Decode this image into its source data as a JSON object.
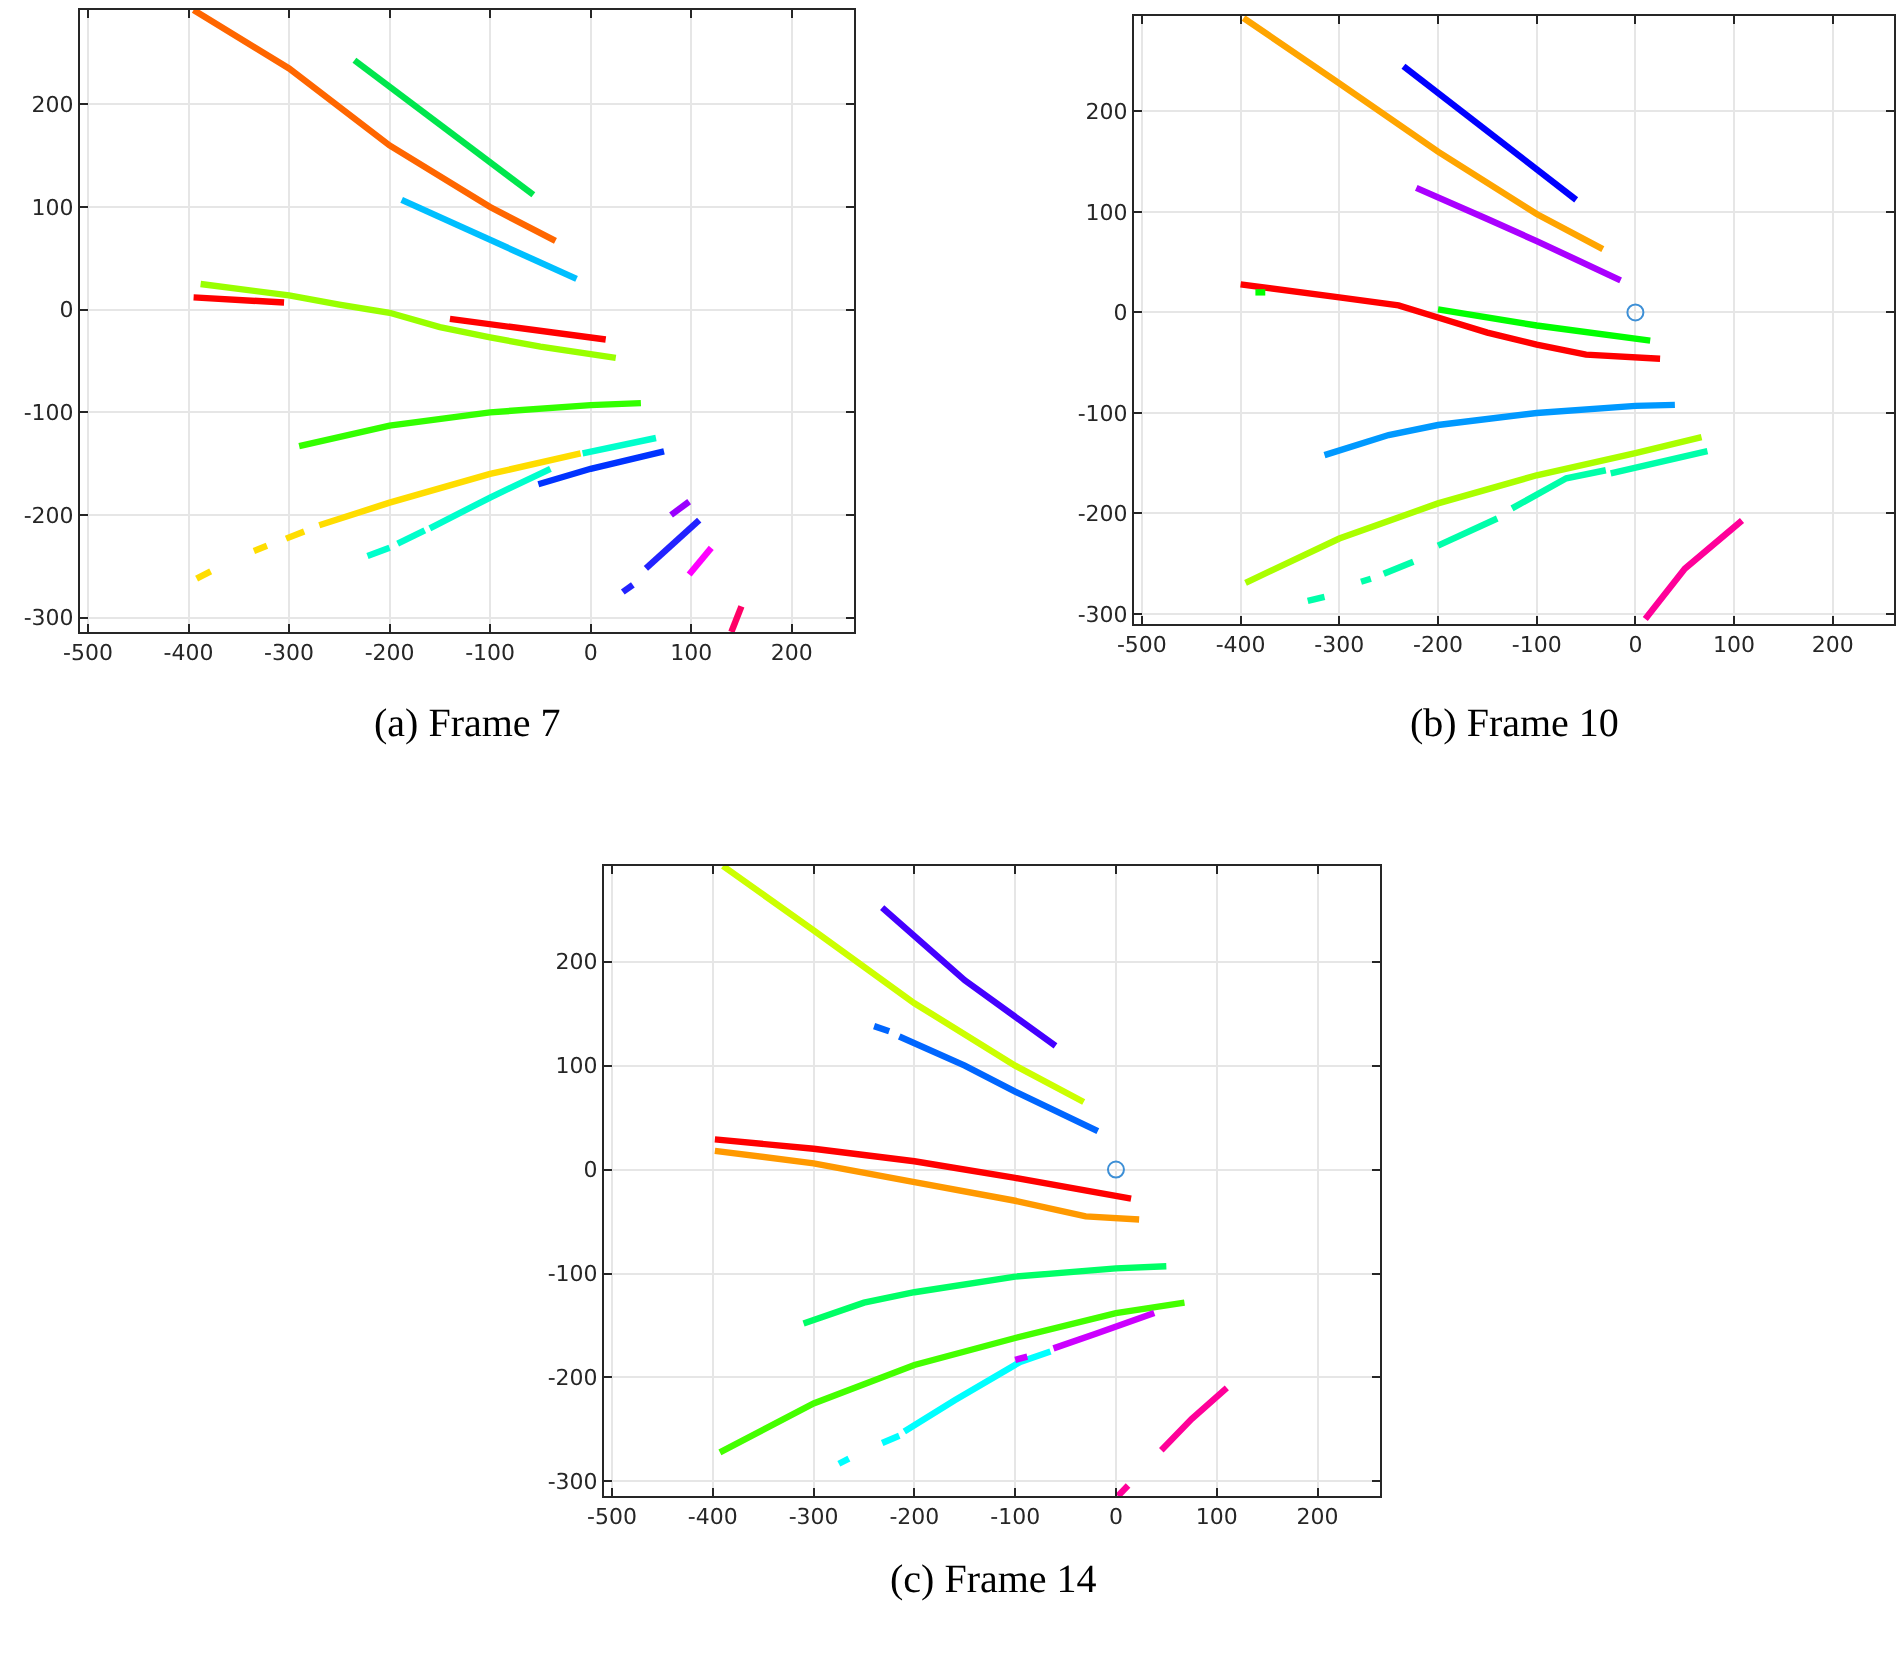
{
  "chart_data": [
    {
      "type": "line",
      "annotations": [
        "(a) Frame 7"
      ],
      "xlim": [
        -508,
        262
      ],
      "ylim": [
        -314,
        292
      ],
      "xticks": [
        -500,
        -400,
        -300,
        -200,
        -100,
        0,
        100,
        200
      ],
      "yticks": [
        -300,
        -200,
        -100,
        0,
        100,
        200
      ],
      "grid": true,
      "series": [
        {
          "color": "#ff6600",
          "x": [
            -395,
            -300,
            -200,
            -100,
            -35
          ],
          "values": [
            292,
            235,
            160,
            100,
            67
          ]
        },
        {
          "color": "#00e64d",
          "x": [
            -235,
            -57
          ],
          "values": [
            243,
            112
          ]
        },
        {
          "color": "#00bfff",
          "x": [
            -188,
            -14
          ],
          "values": [
            107,
            30
          ]
        },
        {
          "color": "#ff0000",
          "x": [
            -395,
            -305,
            -220,
            -140,
            15
          ],
          "values": [
            12,
            7,
            null,
            -9,
            -29
          ]
        },
        {
          "color": "#99ff00",
          "x": [
            -388,
            -300,
            -250,
            -200,
            -150,
            -100,
            -50,
            25
          ],
          "values": [
            25,
            14,
            5,
            -3,
            -17,
            -27,
            -36,
            -47
          ]
        },
        {
          "color": "#33ff00",
          "x": [
            -290,
            -200,
            -100,
            0,
            50
          ],
          "values": [
            -133,
            -113,
            -100,
            -93,
            -91
          ]
        },
        {
          "color": "#ffdd00",
          "x": [
            -392,
            -378,
            -355,
            -335,
            -322,
            -312,
            -303,
            -285,
            -278,
            -270,
            -200,
            -100,
            -10
          ],
          "values": [
            -262,
            -255,
            null,
            -235,
            -230,
            null,
            -223,
            -216,
            null,
            -210,
            -188,
            -160,
            -140
          ]
        },
        {
          "color": "#00ffcc",
          "x": [
            -222,
            -200,
            -196,
            -192,
            -165,
            -162,
            -160,
            -100,
            -40,
            -25,
            -8,
            65
          ],
          "values": [
            -240,
            -232,
            null,
            -228,
            -215,
            null,
            -213,
            -183,
            -155,
            null,
            -140,
            -125
          ]
        },
        {
          "color": "#0033ff",
          "x": [
            -52,
            0,
            73
          ],
          "values": [
            -170,
            -155,
            -138
          ]
        },
        {
          "color": "#2222ff",
          "x": [
            32,
            42,
            48,
            55,
            108
          ],
          "values": [
            -275,
            -268,
            null,
            -252,
            -205
          ]
        },
        {
          "color": "#9900ff",
          "x": [
            80,
            98
          ],
          "values": [
            -200,
            -187
          ]
        },
        {
          "color": "#ff00ff",
          "x": [
            98,
            120
          ],
          "values": [
            -258,
            -232
          ]
        },
        {
          "color": "#ff0066",
          "x": [
            140,
            150
          ],
          "values": [
            -314,
            -289
          ]
        }
      ]
    },
    {
      "type": "line",
      "annotations": [
        "(b) Frame 10"
      ],
      "xlim": [
        -508,
        262
      ],
      "ylim": [
        -310,
        295
      ],
      "xticks": [
        -500,
        -400,
        -300,
        -200,
        -100,
        0,
        100,
        200
      ],
      "yticks": [
        -300,
        -200,
        -100,
        0,
        100,
        200
      ],
      "grid": true,
      "series": [
        {
          "color": "#ffa500",
          "x": [
            -397,
            -300,
            -200,
            -100,
            -33
          ],
          "values": [
            293,
            228,
            160,
            98,
            63
          ]
        },
        {
          "color": "#0000ff",
          "x": [
            -235,
            -60
          ],
          "values": [
            245,
            112
          ]
        },
        {
          "color": "#aa00ff",
          "x": [
            -222,
            -150,
            -100,
            -15
          ],
          "values": [
            124,
            93,
            71,
            32
          ]
        },
        {
          "color": "#ff0000",
          "x": [
            -400,
            -300,
            -240,
            -200,
            -150,
            -100,
            -50,
            25
          ],
          "values": [
            28,
            15,
            7,
            -5,
            -20,
            -32,
            -42,
            -46
          ]
        },
        {
          "color": "#00ff00",
          "x": [
            -385,
            -375,
            -300,
            -200,
            -100,
            15
          ],
          "values": [
            20,
            20,
            null,
            3,
            -13,
            -28
          ]
        },
        {
          "color": "#0099ff",
          "x": [
            -315,
            -250,
            -200,
            -100,
            0,
            40
          ],
          "values": [
            -142,
            -122,
            -112,
            -100,
            -93,
            -92
          ]
        },
        {
          "color": "#aaff00",
          "x": [
            -395,
            -300,
            -200,
            -100,
            0,
            67
          ],
          "values": [
            -269,
            -225,
            -190,
            -162,
            -140,
            -124
          ]
        },
        {
          "color": "#00ffaa",
          "x": [
            -332,
            -315,
            -295,
            -278,
            -268,
            -262,
            -255,
            -225,
            -212,
            -200,
            -140,
            -132,
            -125,
            -70,
            -30,
            -28,
            -25,
            73
          ],
          "values": [
            -287,
            -283,
            null,
            -268,
            -265,
            null,
            -260,
            -248,
            null,
            -232,
            -205,
            null,
            -195,
            -165,
            -157,
            null,
            -160,
            -138
          ]
        },
        {
          "color": "#ff0099",
          "x": [
            10,
            50,
            108
          ],
          "values": [
            -305,
            -255,
            -207
          ]
        },
        {
          "type": "scatter",
          "marker": "circle",
          "color": "#3d8fd6",
          "x": [
            0
          ],
          "values": [
            0
          ]
        }
      ]
    },
    {
      "type": "line",
      "annotations": [
        "(c) Frame 14"
      ],
      "xlim": [
        -508,
        262
      ],
      "ylim": [
        -314,
        292
      ],
      "xticks": [
        -500,
        -400,
        -300,
        -200,
        -100,
        0,
        100,
        200
      ],
      "yticks": [
        -300,
        -200,
        -100,
        0,
        100,
        200
      ],
      "grid": true,
      "series": [
        {
          "color": "#ccff00",
          "x": [
            -390,
            -300,
            -200,
            -100,
            -32
          ],
          "values": [
            292,
            230,
            160,
            100,
            65
          ]
        },
        {
          "color": "#4400ff",
          "x": [
            -232,
            -150,
            -60
          ],
          "values": [
            252,
            182,
            119
          ]
        },
        {
          "color": "#0066ff",
          "x": [
            -240,
            -225,
            -220,
            -215,
            -150,
            -100,
            -18
          ],
          "values": [
            138,
            133,
            null,
            128,
            100,
            75,
            37
          ]
        },
        {
          "color": "#ff0000",
          "x": [
            -398,
            -300,
            -200,
            -100,
            15
          ],
          "values": [
            29,
            20,
            8,
            -8,
            -28
          ]
        },
        {
          "color": "#ff9900",
          "x": [
            -398,
            -300,
            -200,
            -100,
            -30,
            23
          ],
          "values": [
            18,
            6,
            -12,
            -30,
            -45,
            -48
          ]
        },
        {
          "color": "#00ff66",
          "x": [
            -310,
            -250,
            -200,
            -100,
            0,
            50
          ],
          "values": [
            -148,
            -128,
            -118,
            -103,
            -95,
            -93
          ]
        },
        {
          "color": "#44ff00",
          "x": [
            -393,
            -300,
            -200,
            -100,
            0,
            68
          ],
          "values": [
            -272,
            -225,
            -188,
            -162,
            -138,
            -128
          ]
        },
        {
          "color": "#00ffff",
          "x": [
            -275,
            -265,
            -250,
            -232,
            -215,
            -212,
            -210,
            -160,
            -95,
            -65
          ],
          "values": [
            -283,
            -278,
            null,
            -263,
            -256,
            null,
            -252,
            -222,
            -185,
            -175
          ]
        },
        {
          "color": "#cc00ff",
          "x": [
            -100,
            -88,
            -75,
            -62,
            -20,
            38
          ],
          "values": [
            -183,
            -180,
            null,
            -172,
            -158,
            -138
          ]
        },
        {
          "color": "#ff0099",
          "x": [
            2,
            12,
            30,
            45,
            75,
            110
          ],
          "values": [
            -314,
            -304,
            null,
            -270,
            -240,
            -210
          ]
        },
        {
          "type": "scatter",
          "marker": "circle",
          "color": "#3d8fd6",
          "x": [
            0
          ],
          "values": [
            0
          ]
        }
      ]
    }
  ]
}
